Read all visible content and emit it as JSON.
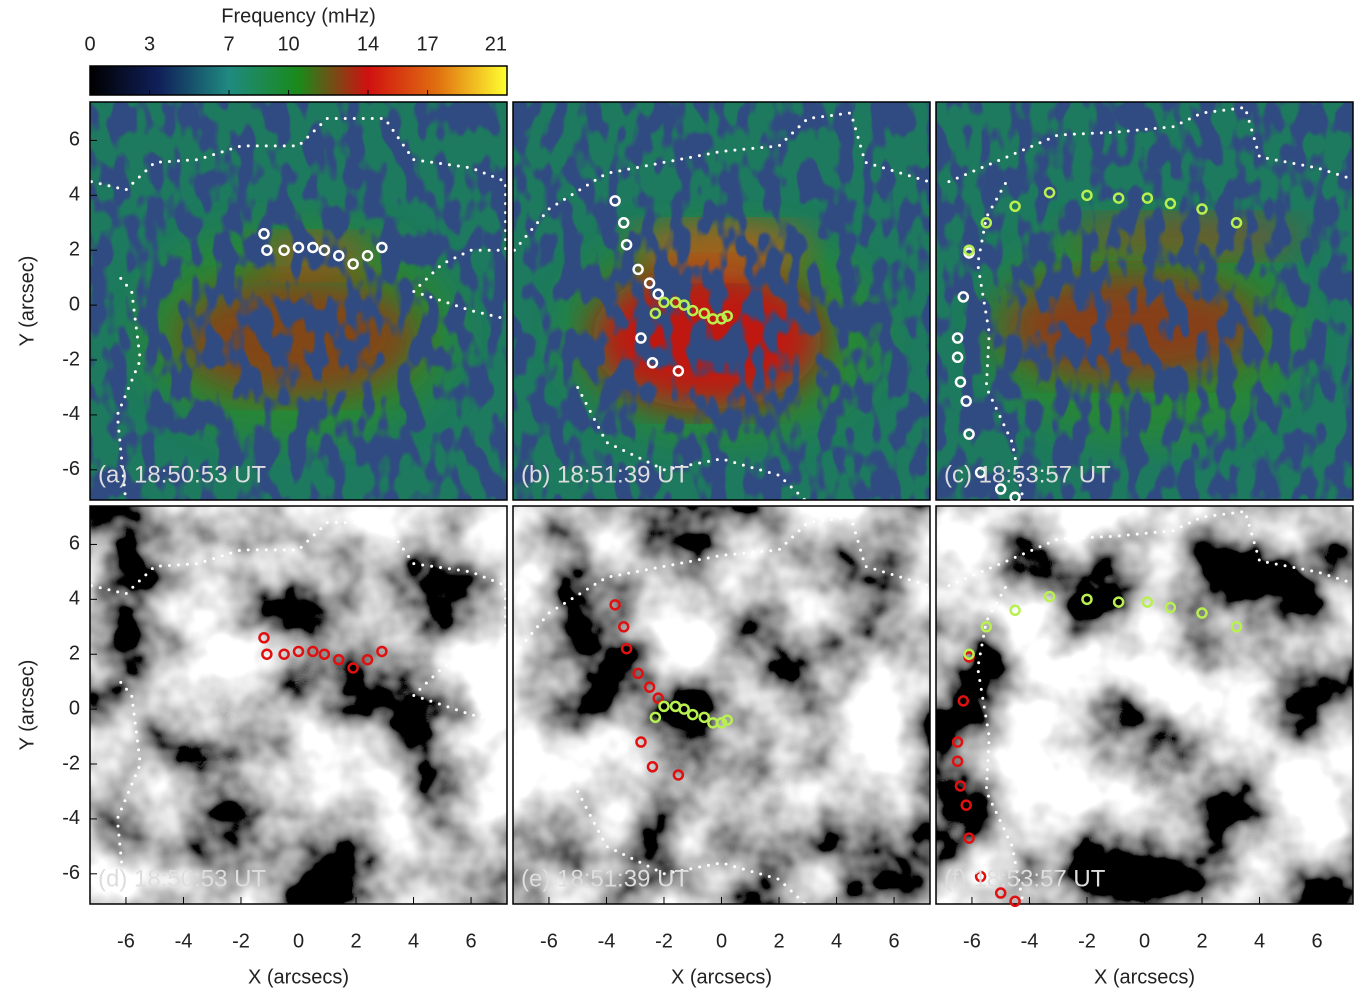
{
  "chart_data": [
    {
      "type": "colorbar",
      "title": "Frequency (mHz)",
      "xlim": [
        0,
        21
      ],
      "xticks": [
        0,
        3,
        7,
        10,
        14,
        17,
        21
      ],
      "colors": [
        "#000000",
        "#10205a",
        "#1f8a80",
        "#1a8a1a",
        "#d01010",
        "#e07010",
        "#ffff30"
      ]
    },
    {
      "type": "scatter",
      "background": "frequency",
      "label": "(a) 18:50:53 UT",
      "ylabel": "Y (arcsec)",
      "xlim": [
        -7.25,
        7.25
      ],
      "ylim": [
        -7.1,
        7.4
      ],
      "yticks": [
        -6,
        -4,
        -2,
        0,
        2,
        4,
        6
      ],
      "series": [
        {
          "color": "#ffffff",
          "x": [
            -1.2,
            -1.1,
            -0.5,
            0,
            0.5,
            0.9,
            1.4,
            1.9,
            2.4,
            2.9
          ],
          "values": [
            2.6,
            2.0,
            2.0,
            2.1,
            2.1,
            2.0,
            1.8,
            1.5,
            1.8,
            2.1
          ]
        }
      ]
    },
    {
      "type": "scatter",
      "background": "frequency",
      "label": "(b) 18:51:39 UT",
      "xlim": [
        -7.25,
        7.25
      ],
      "ylim": [
        -7.1,
        7.4
      ],
      "series": [
        {
          "color": "#ffffff",
          "x": [
            -3.7,
            -3.4,
            -3.3,
            -2.9,
            -2.5,
            -2.2,
            -2.8,
            -2.4,
            -1.5
          ],
          "values": [
            3.8,
            3.0,
            2.2,
            1.3,
            0.8,
            0.4,
            -1.2,
            -2.1,
            -2.4
          ]
        },
        {
          "color": "#b8f050",
          "x": [
            -2.3,
            -2.0,
            -1.6,
            -1.3,
            -1.0,
            -0.6,
            -0.3,
            0.0,
            0.2
          ],
          "values": [
            -0.3,
            0.1,
            0.1,
            0.0,
            -0.2,
            -0.3,
            -0.5,
            -0.5,
            -0.4
          ]
        }
      ]
    },
    {
      "type": "scatter",
      "background": "frequency",
      "label": "(c) 18:53:57 UT",
      "xlim": [
        -7.25,
        7.25
      ],
      "ylim": [
        -7.1,
        7.4
      ],
      "series": [
        {
          "color": "#ffffff",
          "x": [
            -6.1,
            -6.3,
            -6.5,
            -6.5,
            -6.4,
            -6.2,
            -6.1,
            -5.7,
            -5.0,
            -4.5
          ],
          "values": [
            1.9,
            0.3,
            -1.2,
            -1.9,
            -2.8,
            -3.5,
            -4.7,
            -6.1,
            -6.7,
            -7.0
          ]
        },
        {
          "color": "#b8f050",
          "x": [
            -6.1,
            -5.5,
            -4.5,
            -3.3,
            -2.0,
            -0.9,
            0.1,
            0.9,
            2.0,
            3.2
          ],
          "values": [
            2.0,
            3.0,
            3.6,
            4.1,
            4.0,
            3.9,
            3.9,
            3.7,
            3.5,
            3.0
          ]
        }
      ]
    },
    {
      "type": "scatter",
      "background": "intensity",
      "label": "(d) 18:50:53 UT",
      "ylabel": "Y (arcsec)",
      "xlabel": "X (arcsecs)",
      "xlim": [
        -7.25,
        7.25
      ],
      "ylim": [
        -7.1,
        7.4
      ],
      "xticks": [
        -6,
        -4,
        -2,
        0,
        2,
        4,
        6
      ],
      "yticks": [
        -6,
        -4,
        -2,
        0,
        2,
        4,
        6
      ],
      "series": [
        {
          "color": "#e01010",
          "x": [
            -1.2,
            -1.1,
            -0.5,
            0,
            0.5,
            0.9,
            1.4,
            1.9,
            2.4,
            2.9
          ],
          "values": [
            2.6,
            2.0,
            2.0,
            2.1,
            2.1,
            2.0,
            1.8,
            1.5,
            1.8,
            2.1
          ]
        }
      ]
    },
    {
      "type": "scatter",
      "background": "intensity",
      "label": "(e) 18:51:39 UT",
      "xlabel": "X (arcsecs)",
      "xlim": [
        -7.25,
        7.25
      ],
      "ylim": [
        -7.1,
        7.4
      ],
      "xticks": [
        -6,
        -4,
        -2,
        0,
        2,
        4,
        6
      ],
      "series": [
        {
          "color": "#e01010",
          "x": [
            -3.7,
            -3.4,
            -3.3,
            -2.9,
            -2.5,
            -2.2,
            -2.8,
            -2.4,
            -1.5
          ],
          "values": [
            3.8,
            3.0,
            2.2,
            1.3,
            0.8,
            0.4,
            -1.2,
            -2.1,
            -2.4
          ]
        },
        {
          "color": "#b8f050",
          "x": [
            -2.3,
            -2.0,
            -1.6,
            -1.3,
            -1.0,
            -0.6,
            -0.3,
            0.0,
            0.2
          ],
          "values": [
            -0.3,
            0.1,
            0.1,
            0.0,
            -0.2,
            -0.3,
            -0.5,
            -0.5,
            -0.4
          ]
        }
      ]
    },
    {
      "type": "scatter",
      "background": "intensity",
      "label": "(f) 18:53:57 UT",
      "xlabel": "X (arcsecs)",
      "xlim": [
        -7.25,
        7.25
      ],
      "ylim": [
        -7.1,
        7.4
      ],
      "xticks": [
        -6,
        -4,
        -2,
        0,
        2,
        4,
        6
      ],
      "series": [
        {
          "color": "#e01010",
          "x": [
            -6.1,
            -6.3,
            -6.5,
            -6.5,
            -6.4,
            -6.2,
            -6.1,
            -5.7,
            -5.0,
            -4.5
          ],
          "values": [
            1.9,
            0.3,
            -1.2,
            -1.9,
            -2.8,
            -3.5,
            -4.7,
            -6.1,
            -6.7,
            -7.0
          ]
        },
        {
          "color": "#b8f050",
          "x": [
            -6.1,
            -5.5,
            -4.5,
            -3.3,
            -2.0,
            -0.9,
            0.1,
            0.9,
            2.0,
            3.2
          ],
          "values": [
            2.0,
            3.0,
            3.6,
            4.1,
            4.0,
            3.9,
            3.9,
            3.7,
            3.5,
            3.0
          ]
        }
      ]
    }
  ]
}
